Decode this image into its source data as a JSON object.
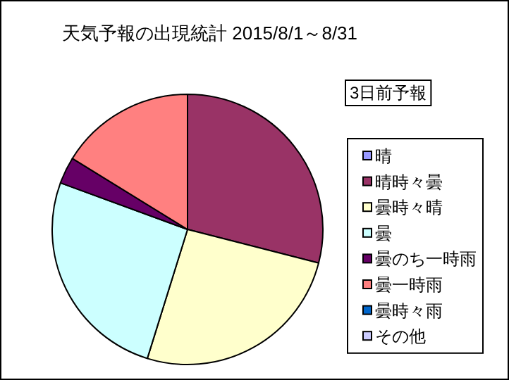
{
  "chart_data": {
    "type": "pie",
    "title": "天気予報の出現統計 2015/8/1～8/31",
    "annotations": [
      "3日前予報"
    ],
    "legend": "right",
    "categories": [
      "晴",
      "晴時々曇",
      "曇時々晴",
      "曇",
      "曇のち一時雨",
      "曇一時雨",
      "曇時々雨",
      "その他"
    ],
    "values": [
      0,
      29.0,
      25.8,
      25.8,
      3.2,
      16.2,
      0,
      0
    ],
    "colors": [
      "#9999ff",
      "#993366",
      "#ffffcc",
      "#ccffff",
      "#660066",
      "#ff8080",
      "#0066cc",
      "#ccccff"
    ]
  }
}
